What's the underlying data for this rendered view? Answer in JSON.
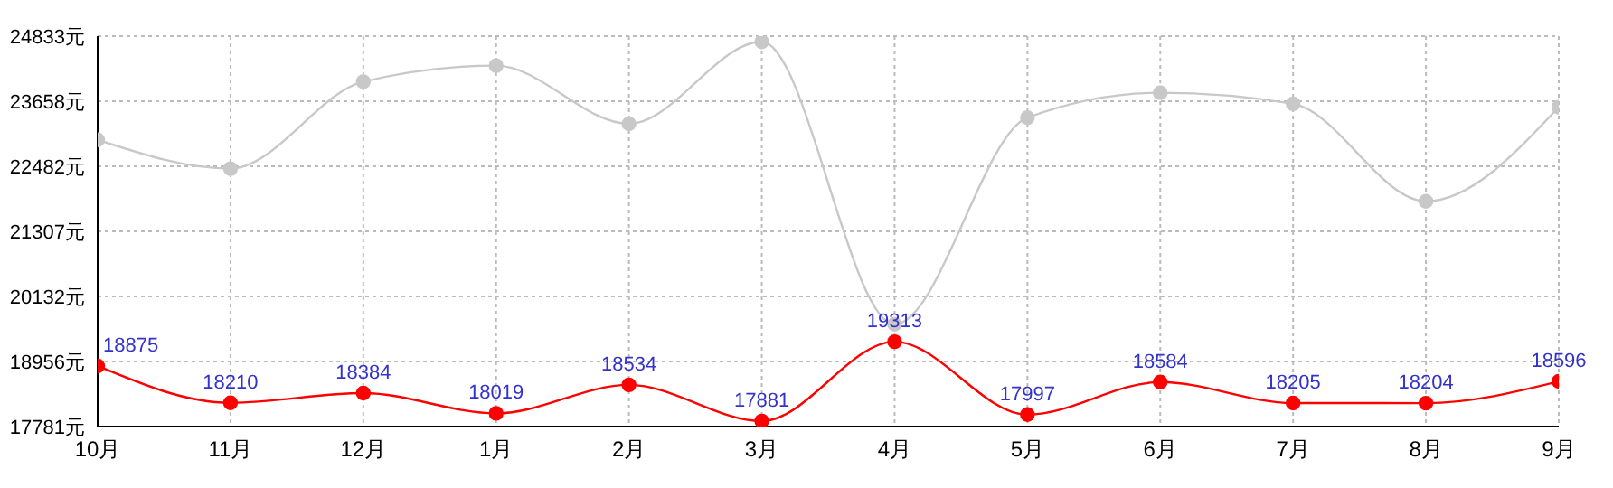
{
  "chart_data": {
    "type": "line",
    "categories": [
      "10月",
      "11月",
      "12月",
      "1月",
      "2月",
      "3月",
      "4月",
      "5月",
      "6月",
      "7月",
      "8月",
      "9月"
    ],
    "series": [
      {
        "color": "#c8c8c8",
        "values": [
          22960,
          22440,
          24010,
          24300,
          23250,
          24730,
          19630,
          23360,
          23810,
          23610,
          21850,
          23550
        ]
      },
      {
        "color": "#ff0000",
        "values": [
          18875,
          18210,
          18384,
          18019,
          18534,
          17881,
          19313,
          17997,
          18584,
          18205,
          18204,
          18596
        ],
        "value_labels": [
          "18875",
          "18210",
          "18384",
          "18019",
          "18534",
          "17881",
          "19313",
          "17997",
          "18584",
          "18205",
          "18204",
          "18596"
        ]
      }
    ],
    "ylim": [
      17781,
      24833
    ],
    "yticks": [
      {
        "value": 17781,
        "label": "17781元"
      },
      {
        "value": 18956,
        "label": "18956元"
      },
      {
        "value": 20132,
        "label": "20132元"
      },
      {
        "value": 21307,
        "label": "21307元"
      },
      {
        "value": 22482,
        "label": "22482元"
      },
      {
        "value": 23658,
        "label": "23658元"
      },
      {
        "value": 24833,
        "label": "24833元"
      }
    ],
    "grid": true,
    "marker": "circle"
  }
}
